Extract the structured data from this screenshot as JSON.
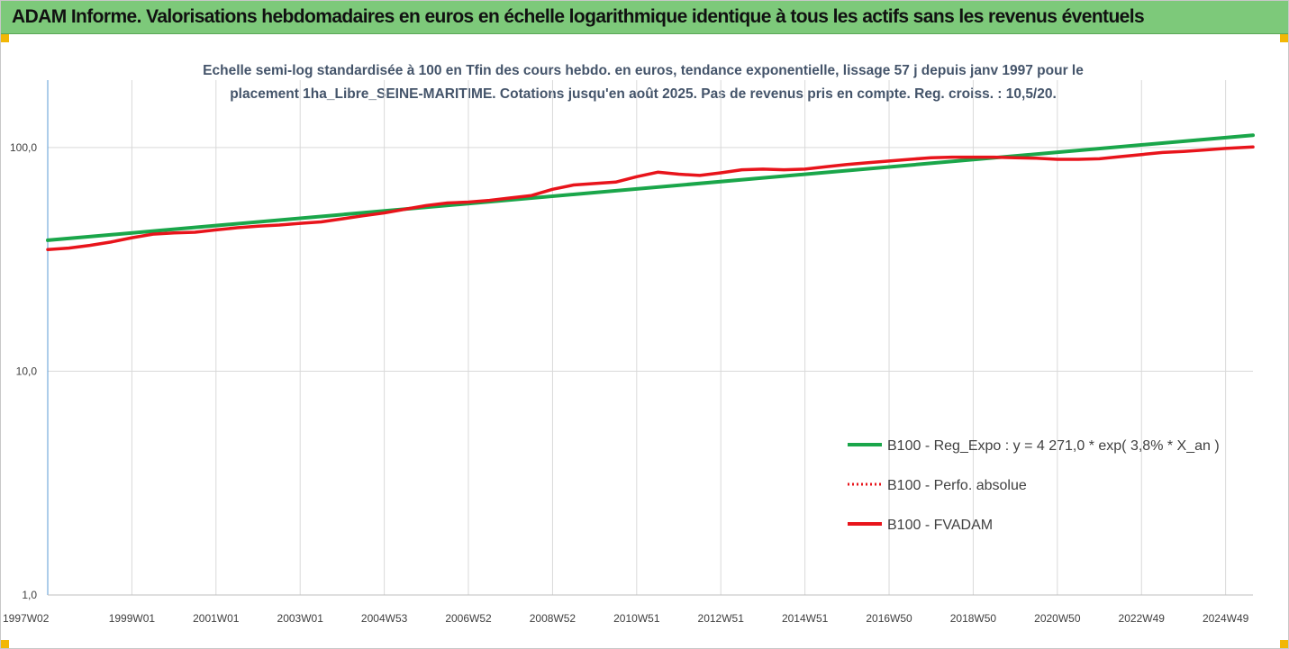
{
  "header": {
    "title": "ADAM Informe. Valorisations hebdomadaires en euros en échelle logarithmique identique à tous les actifs sans les revenus éventuels"
  },
  "colors": {
    "banner": "#7dc97a",
    "corner_accent": "#f2b705",
    "trend": "#1aa64a",
    "perf": "#e8141b",
    "fvadam": "#e8141b",
    "subtitle": "#44546a"
  },
  "chart_data": {
    "type": "line",
    "title_lines": [
      "Echelle semi-log standardisée à 100 en Tfin des cours hebdo. en euros, tendance exponentielle, lissage 57 j depuis janv 1997 pour le",
      "placement 1ha_Libre_SEINE-MARITIME.  Cotations jusqu'en août 2025. Pas de revenus pris en compte. Reg. croiss. : 10,5/20."
    ],
    "y_scale": "log",
    "ylim": [
      1,
      200
    ],
    "y_ticks": [
      {
        "value": 1,
        "label": "1,0"
      },
      {
        "value": 10,
        "label": "10,0"
      },
      {
        "value": 100,
        "label": "100,0"
      }
    ],
    "xlim": [
      1997.0,
      2025.65
    ],
    "x_ticks": [
      {
        "value": 1997.0,
        "label": "1997W02"
      },
      {
        "value": 1999.0,
        "label": "1999W01"
      },
      {
        "value": 2001.0,
        "label": "2001W01"
      },
      {
        "value": 2003.0,
        "label": "2003W01"
      },
      {
        "value": 2005.0,
        "label": "2004W53"
      },
      {
        "value": 2007.0,
        "label": "2006W52"
      },
      {
        "value": 2009.0,
        "label": "2008W52"
      },
      {
        "value": 2011.0,
        "label": "2010W51"
      },
      {
        "value": 2013.0,
        "label": "2012W51"
      },
      {
        "value": 2015.0,
        "label": "2014W51"
      },
      {
        "value": 2017.0,
        "label": "2016W50"
      },
      {
        "value": 2019.0,
        "label": "2018W50"
      },
      {
        "value": 2021.0,
        "label": "2020W50"
      },
      {
        "value": 2023.0,
        "label": "2022W49"
      },
      {
        "value": 2025.0,
        "label": "2024W49"
      }
    ],
    "grid": "vertical",
    "legend_position": "right",
    "series": [
      {
        "name": "B100 - Reg_Expo : y = 4 271,0 * exp( 3,8% *  X_an )",
        "color": "#1aa64a",
        "style": "solid",
        "x": [
          1997.0,
          2025.65
        ],
        "y": [
          38.5,
          113.5
        ]
      },
      {
        "name": "B100 - Perfo. absolue",
        "color": "#e8141b",
        "style": "dotted",
        "x": [],
        "y": []
      },
      {
        "name": "B100 - FVADAM",
        "color": "#e8141b",
        "style": "solid",
        "x": [
          1997.0,
          1997.5,
          1998.0,
          1998.5,
          1999.0,
          1999.5,
          2000.0,
          2000.5,
          2001.0,
          2001.5,
          2002.0,
          2002.5,
          2003.0,
          2003.5,
          2004.0,
          2004.5,
          2005.0,
          2005.5,
          2006.0,
          2006.5,
          2007.0,
          2007.5,
          2008.0,
          2008.5,
          2009.0,
          2009.5,
          2010.0,
          2010.5,
          2011.0,
          2011.5,
          2012.0,
          2012.5,
          2013.0,
          2013.5,
          2014.0,
          2014.5,
          2015.0,
          2015.5,
          2016.0,
          2016.5,
          2017.0,
          2017.5,
          2018.0,
          2018.5,
          2019.0,
          2019.5,
          2020.0,
          2020.5,
          2021.0,
          2021.5,
          2022.0,
          2022.5,
          2023.0,
          2023.5,
          2024.0,
          2024.5,
          2025.0,
          2025.65
        ],
        "y": [
          35.0,
          35.5,
          36.5,
          37.8,
          39.5,
          41.0,
          41.5,
          41.8,
          42.8,
          43.8,
          44.5,
          45.0,
          45.8,
          46.5,
          48.0,
          49.5,
          51.0,
          53.0,
          55.0,
          56.5,
          57.0,
          58.0,
          59.5,
          61.0,
          65.0,
          68.0,
          69.0,
          70.0,
          74.0,
          77.5,
          76.0,
          75.0,
          77.0,
          79.5,
          80.0,
          79.5,
          80.0,
          82.0,
          84.0,
          85.5,
          87.0,
          88.5,
          90.0,
          90.5,
          90.5,
          90.5,
          90.0,
          89.5,
          88.5,
          88.5,
          89.0,
          91.0,
          93.0,
          95.0,
          96.0,
          97.5,
          99.0,
          100.5
        ]
      }
    ]
  }
}
